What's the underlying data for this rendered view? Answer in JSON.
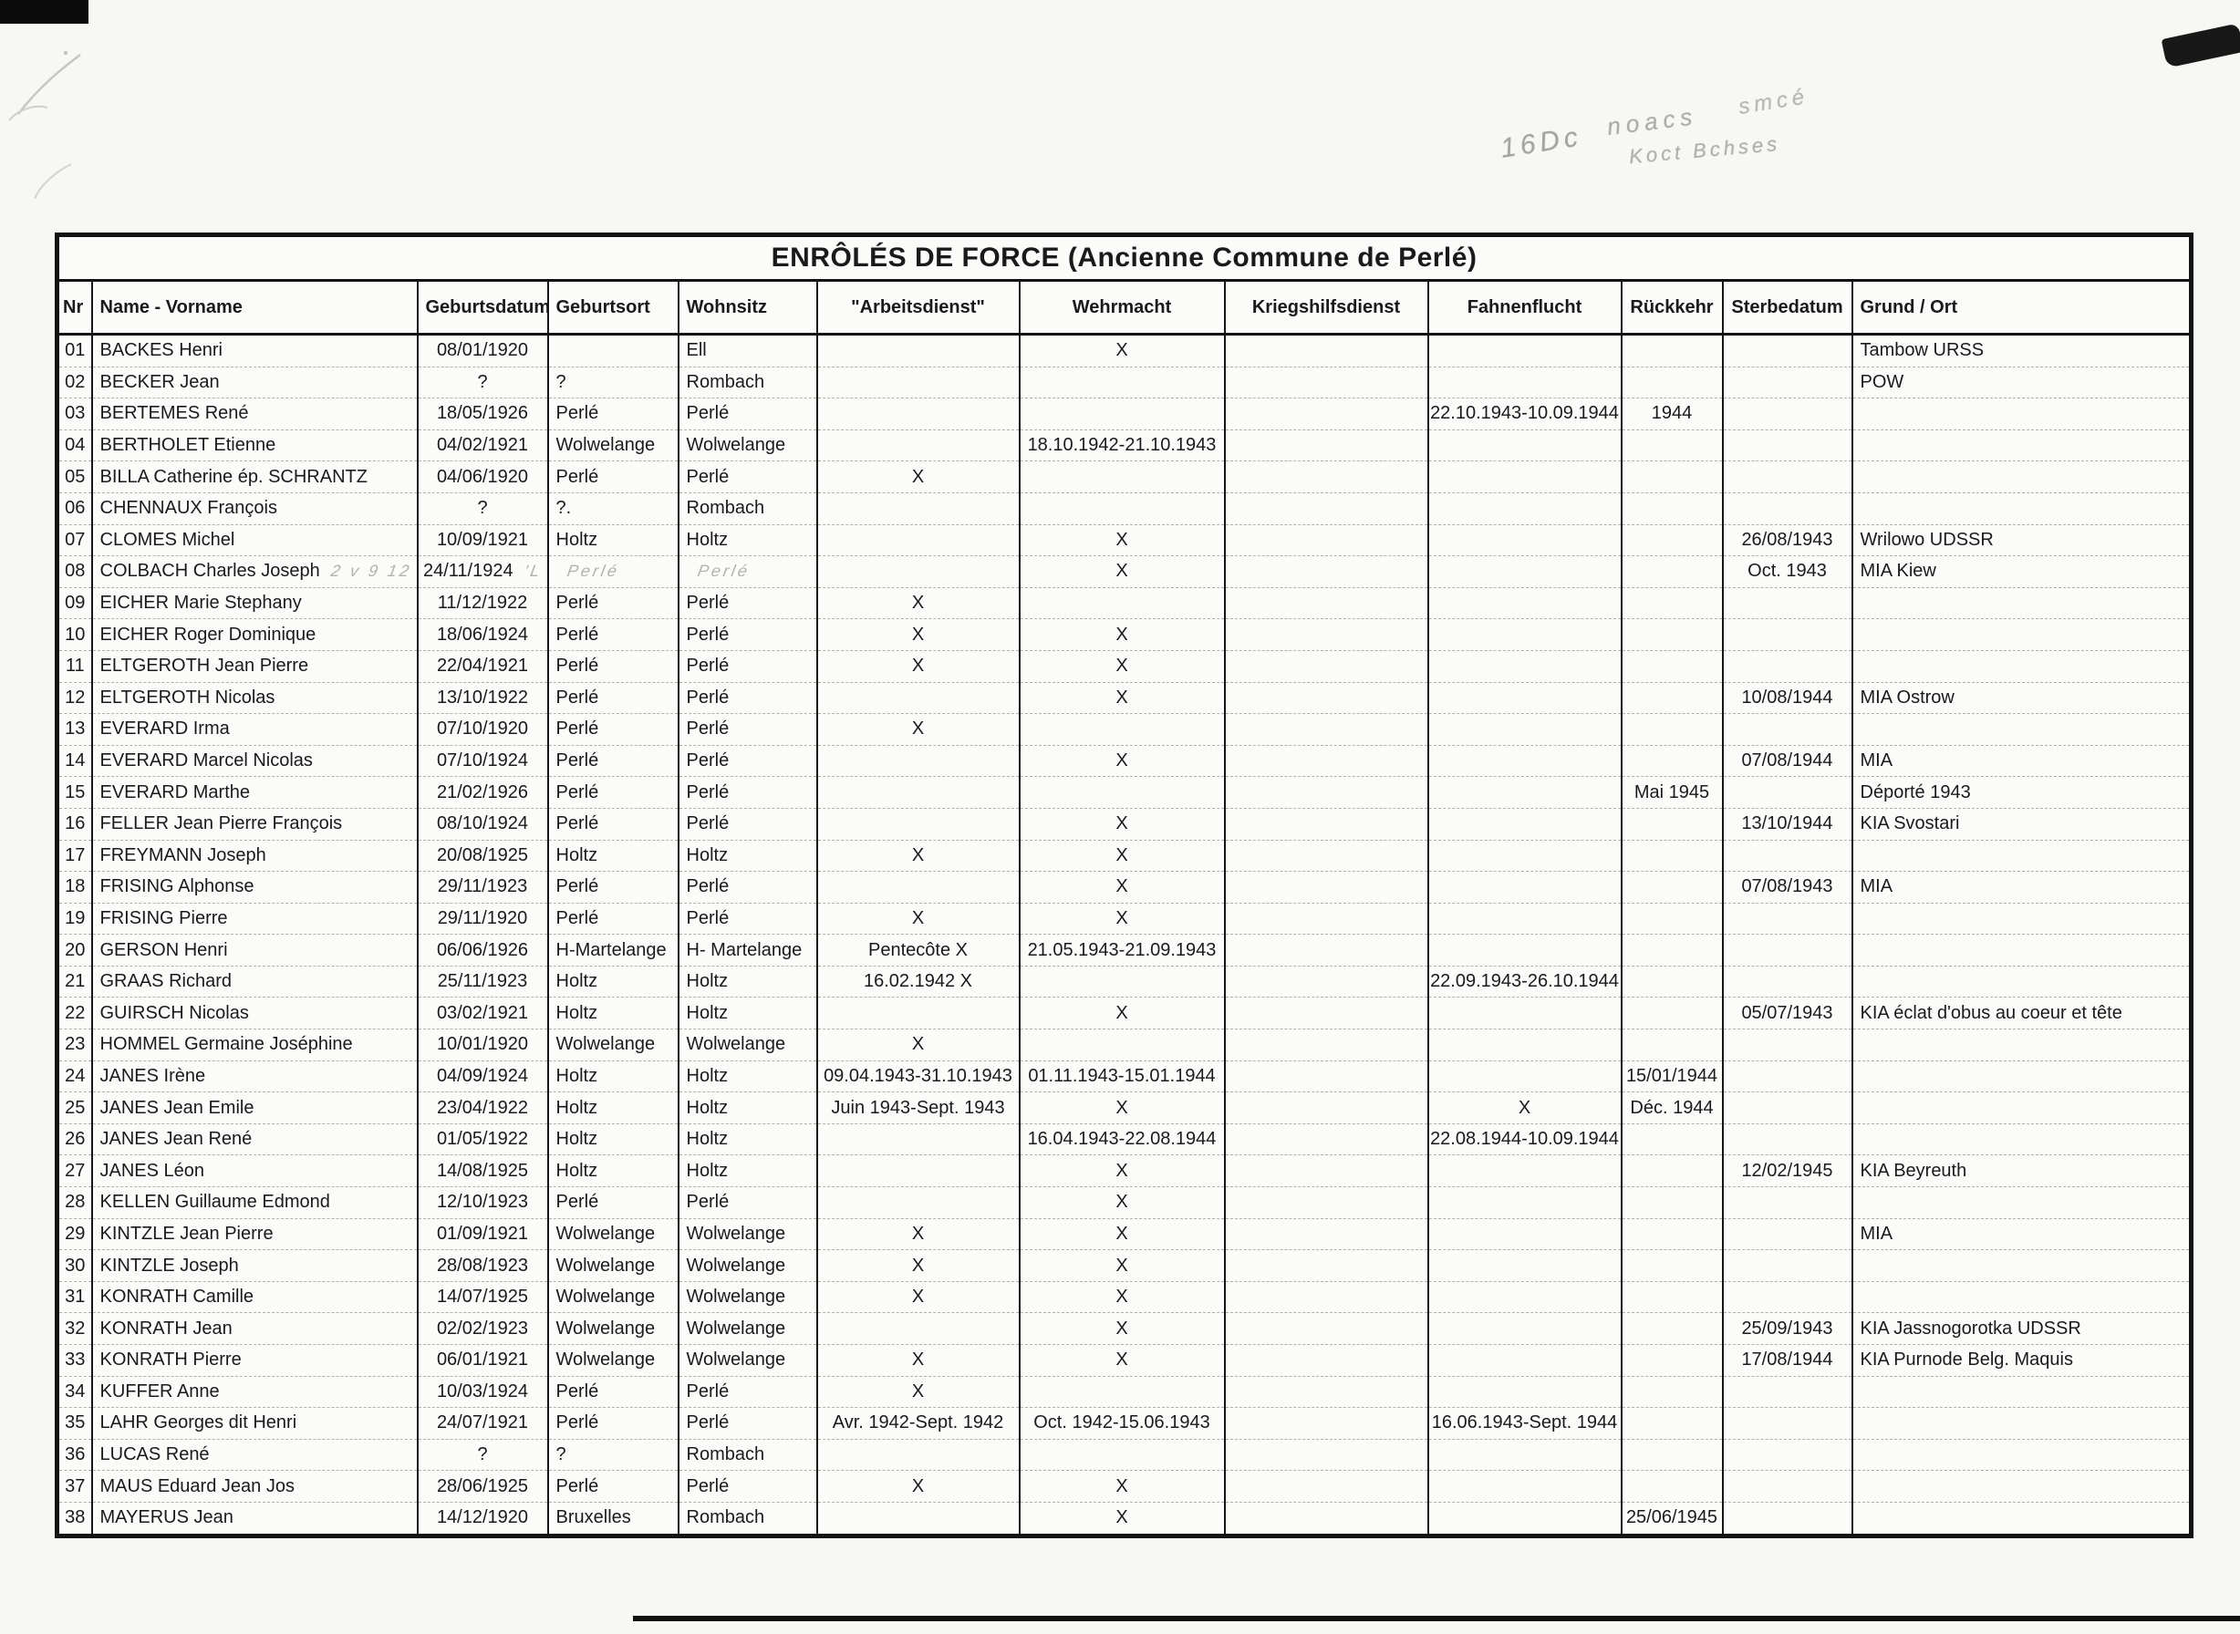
{
  "scan": {
    "title": "ENRÔLÉS DE FORCE  (Ancienne Commune de Perlé)"
  },
  "annotations": {
    "corner_number": "16Dc",
    "note_word1": "noacs",
    "note_word2": "smcé",
    "note_line2": "Koct Bchses"
  },
  "table": {
    "columns": [
      {
        "key": "nr",
        "label": "Nr"
      },
      {
        "key": "name",
        "label": "Name - Vorname"
      },
      {
        "key": "geburtsdatum",
        "label": "Geburtsdatum"
      },
      {
        "key": "geburtsort",
        "label": "Geburtsort"
      },
      {
        "key": "wohnsitz",
        "label": "Wohnsitz"
      },
      {
        "key": "arbeitsdienst",
        "label": "\"Arbeitsdienst\""
      },
      {
        "key": "wehrmacht",
        "label": "Wehrmacht"
      },
      {
        "key": "kriegshilfsdienst",
        "label": "Kriegshilfsdienst"
      },
      {
        "key": "fahnenflucht",
        "label": "Fahnenflucht"
      },
      {
        "key": "rueckkehr",
        "label": "Rückkehr"
      },
      {
        "key": "sterbedatum",
        "label": "Sterbedatum"
      },
      {
        "key": "grund",
        "label": "Grund / Ort"
      }
    ],
    "rows": [
      {
        "nr": "01",
        "name": "BACKES Henri",
        "geburtsdatum": "08/01/1920",
        "geburtsort": "",
        "wohnsitz": "Ell",
        "wehrmacht": "X",
        "grund": "Tambow URSS"
      },
      {
        "nr": "02",
        "name": "BECKER Jean",
        "geburtsdatum": "?",
        "geburtsort": "?",
        "wohnsitz": "Rombach",
        "grund": "POW"
      },
      {
        "nr": "03",
        "name": "BERTEMES René",
        "geburtsdatum": "18/05/1926",
        "geburtsort": "Perlé",
        "wohnsitz": "Perlé",
        "fahnenflucht": "22.10.1943-10.09.1944",
        "rueckkehr": "1944"
      },
      {
        "nr": "04",
        "name": "BERTHOLET Etienne",
        "geburtsdatum": "04/02/1921",
        "geburtsort": "Wolwelange",
        "wohnsitz": "Wolwelange",
        "wehrmacht": "18.10.1942-21.10.1943"
      },
      {
        "nr": "05",
        "name": "BILLA Catherine ép. SCHRANTZ",
        "geburtsdatum": "04/06/1920",
        "geburtsort": "Perlé",
        "wohnsitz": "Perlé",
        "arbeitsdienst": "X"
      },
      {
        "nr": "06",
        "name": "CHENNAUX François",
        "geburtsdatum": "?",
        "geburtsort": "?.",
        "wohnsitz": "Rombach"
      },
      {
        "nr": "07",
        "name": "CLOMES Michel",
        "geburtsdatum": "10/09/1921",
        "geburtsort": "Holtz",
        "wohnsitz": "Holtz",
        "wehrmacht": "X",
        "sterbedatum": "26/08/1943",
        "grund": "Wrilowo UDSSR"
      },
      {
        "nr": "08",
        "name": "COLBACH Charles Joseph",
        "name_pencil": "2 v 9 12",
        "geburtsdatum": "24/11/1924",
        "geburtsdatum_pencil": "'L",
        "geburtsort": "",
        "geburtsort_pencil": "Perlé",
        "wohnsitz": "",
        "wohnsitz_pencil": "Perlé",
        "wehrmacht": "X",
        "sterbedatum": "Oct. 1943",
        "grund": "MIA Kiew"
      },
      {
        "nr": "09",
        "name": "EICHER Marie Stephany",
        "geburtsdatum": "11/12/1922",
        "geburtsort": "Perlé",
        "wohnsitz": "Perlé",
        "arbeitsdienst": "X"
      },
      {
        "nr": "10",
        "name": "EICHER Roger Dominique",
        "geburtsdatum": "18/06/1924",
        "geburtsort": "Perlé",
        "wohnsitz": "Perlé",
        "arbeitsdienst": "X",
        "wehrmacht": "X"
      },
      {
        "nr": "11",
        "name": "ELTGEROTH Jean Pierre",
        "geburtsdatum": "22/04/1921",
        "geburtsort": "Perlé",
        "wohnsitz": "Perlé",
        "arbeitsdienst": "X",
        "wehrmacht": "X"
      },
      {
        "nr": "12",
        "name": "ELTGEROTH Nicolas",
        "geburtsdatum": "13/10/1922",
        "geburtsort": "Perlé",
        "wohnsitz": "Perlé",
        "wehrmacht": "X",
        "sterbedatum": "10/08/1944",
        "grund": "MIA Ostrow"
      },
      {
        "nr": "13",
        "name": "EVERARD Irma",
        "geburtsdatum": "07/10/1920",
        "geburtsort": "Perlé",
        "wohnsitz": "Perlé",
        "arbeitsdienst": "X"
      },
      {
        "nr": "14",
        "name": "EVERARD Marcel Nicolas",
        "geburtsdatum": "07/10/1924",
        "geburtsort": "Perlé",
        "wohnsitz": "Perlé",
        "wehrmacht": "X",
        "sterbedatum": "07/08/1944",
        "grund": "MIA"
      },
      {
        "nr": "15",
        "name": "EVERARD Marthe",
        "geburtsdatum": "21/02/1926",
        "geburtsort": "Perlé",
        "wohnsitz": "Perlé",
        "rueckkehr": "Mai 1945",
        "grund": "Déporté 1943"
      },
      {
        "nr": "16",
        "name": "FELLER Jean Pierre François",
        "geburtsdatum": "08/10/1924",
        "geburtsort": "Perlé",
        "wohnsitz": "Perlé",
        "wehrmacht": "X",
        "sterbedatum": "13/10/1944",
        "grund": "KIA Svostari"
      },
      {
        "nr": "17",
        "name": "FREYMANN Joseph",
        "geburtsdatum": "20/08/1925",
        "geburtsort": "Holtz",
        "wohnsitz": "Holtz",
        "arbeitsdienst": "X",
        "wehrmacht": "X"
      },
      {
        "nr": "18",
        "name": "FRISING Alphonse",
        "geburtsdatum": "29/11/1923",
        "geburtsort": "Perlé",
        "wohnsitz": "Perlé",
        "wehrmacht": "X",
        "sterbedatum": "07/08/1943",
        "grund": "MIA"
      },
      {
        "nr": "19",
        "name": "FRISING Pierre",
        "geburtsdatum": "29/11/1920",
        "geburtsort": "Perlé",
        "wohnsitz": "Perlé",
        "arbeitsdienst": "X",
        "wehrmacht": "X"
      },
      {
        "nr": "20",
        "name": "GERSON Henri",
        "geburtsdatum": "06/06/1926",
        "geburtsort": "H-Martelange",
        "wohnsitz": "H- Martelange",
        "arbeitsdienst": "Pentecôte X",
        "wehrmacht": "21.05.1943-21.09.1943"
      },
      {
        "nr": "21",
        "name": "GRAAS Richard",
        "geburtsdatum": "25/11/1923",
        "geburtsort": "Holtz",
        "wohnsitz": "Holtz",
        "arbeitsdienst": "16.02.1942 X",
        "fahnenflucht": "22.09.1943-26.10.1944"
      },
      {
        "nr": "22",
        "name": "GUIRSCH Nicolas",
        "geburtsdatum": "03/02/1921",
        "geburtsort": "Holtz",
        "wohnsitz": "Holtz",
        "wehrmacht": "X",
        "sterbedatum": "05/07/1943",
        "grund": "KIA éclat d'obus au coeur et tête"
      },
      {
        "nr": "23",
        "name": "HOMMEL Germaine Joséphine",
        "geburtsdatum": "10/01/1920",
        "geburtsort": "Wolwelange",
        "wohnsitz": "Wolwelange",
        "arbeitsdienst": "X"
      },
      {
        "nr": "24",
        "name": "JANES Irène",
        "geburtsdatum": "04/09/1924",
        "geburtsort": "Holtz",
        "wohnsitz": "Holtz",
        "arbeitsdienst": "09.04.1943-31.10.1943",
        "wehrmacht": "01.11.1943-15.01.1944",
        "rueckkehr": "15/01/1944"
      },
      {
        "nr": "25",
        "name": "JANES Jean Emile",
        "geburtsdatum": "23/04/1922",
        "geburtsort": "Holtz",
        "wohnsitz": "Holtz",
        "arbeitsdienst": "Juin 1943-Sept. 1943",
        "wehrmacht": "X",
        "fahnenflucht": "X",
        "rueckkehr": "Déc. 1944"
      },
      {
        "nr": "26",
        "name": "JANES Jean René",
        "geburtsdatum": "01/05/1922",
        "geburtsort": "Holtz",
        "wohnsitz": "Holtz",
        "wehrmacht": "16.04.1943-22.08.1944",
        "fahnenflucht": "22.08.1944-10.09.1944"
      },
      {
        "nr": "27",
        "name": "JANES Léon",
        "geburtsdatum": "14/08/1925",
        "geburtsort": "Holtz",
        "wohnsitz": "Holtz",
        "wehrmacht": "X",
        "sterbedatum": "12/02/1945",
        "grund": "KIA Beyreuth"
      },
      {
        "nr": "28",
        "name": "KELLEN Guillaume Edmond",
        "geburtsdatum": "12/10/1923",
        "geburtsort": "Perlé",
        "wohnsitz": "Perlé",
        "wehrmacht": "X"
      },
      {
        "nr": "29",
        "name": "KINTZLE Jean Pierre",
        "geburtsdatum": "01/09/1921",
        "geburtsort": "Wolwelange",
        "wohnsitz": "Wolwelange",
        "arbeitsdienst": "X",
        "wehrmacht": "X",
        "grund": "MIA"
      },
      {
        "nr": "30",
        "name": "KINTZLE Joseph",
        "geburtsdatum": "28/08/1923",
        "geburtsort": "Wolwelange",
        "wohnsitz": "Wolwelange",
        "arbeitsdienst": "X",
        "wehrmacht": "X"
      },
      {
        "nr": "31",
        "name": "KONRATH Camille",
        "geburtsdatum": "14/07/1925",
        "geburtsort": "Wolwelange",
        "wohnsitz": "Wolwelange",
        "arbeitsdienst": "X",
        "wehrmacht": "X"
      },
      {
        "nr": "32",
        "name": "KONRATH Jean",
        "geburtsdatum": "02/02/1923",
        "geburtsort": "Wolwelange",
        "wohnsitz": "Wolwelange",
        "wehrmacht": "X",
        "sterbedatum": "25/09/1943",
        "grund": "KIA Jassnogorotka UDSSR"
      },
      {
        "nr": "33",
        "name": "KONRATH Pierre",
        "geburtsdatum": "06/01/1921",
        "geburtsort": "Wolwelange",
        "wohnsitz": "Wolwelange",
        "arbeitsdienst": "X",
        "wehrmacht": "X",
        "sterbedatum": "17/08/1944",
        "grund": "KIA Purnode Belg. Maquis"
      },
      {
        "nr": "34",
        "name": "KUFFER Anne",
        "geburtsdatum": "10/03/1924",
        "geburtsort": "Perlé",
        "wohnsitz": "Perlé",
        "arbeitsdienst": "X"
      },
      {
        "nr": "35",
        "name": "LAHR Georges dit Henri",
        "geburtsdatum": "24/07/1921",
        "geburtsort": "Perlé",
        "wohnsitz": "Perlé",
        "arbeitsdienst": "Avr. 1942-Sept. 1942",
        "wehrmacht": "Oct. 1942-15.06.1943",
        "fahnenflucht": "16.06.1943-Sept. 1944"
      },
      {
        "nr": "36",
        "name": "LUCAS René",
        "geburtsdatum": "?",
        "geburtsort": "?",
        "wohnsitz": "Rombach"
      },
      {
        "nr": "37",
        "name": "MAUS Eduard Jean Jos",
        "geburtsdatum": "28/06/1925",
        "geburtsort": "Perlé",
        "wohnsitz": "Perlé",
        "arbeitsdienst": "X",
        "wehrmacht": "X"
      },
      {
        "nr": "38",
        "name": "MAYERUS Jean",
        "geburtsdatum": "14/12/1920",
        "geburtsort": "Bruxelles",
        "wohnsitz": "Rombach",
        "wehrmacht": "X",
        "rueckkehr": "25/06/1945"
      }
    ]
  }
}
